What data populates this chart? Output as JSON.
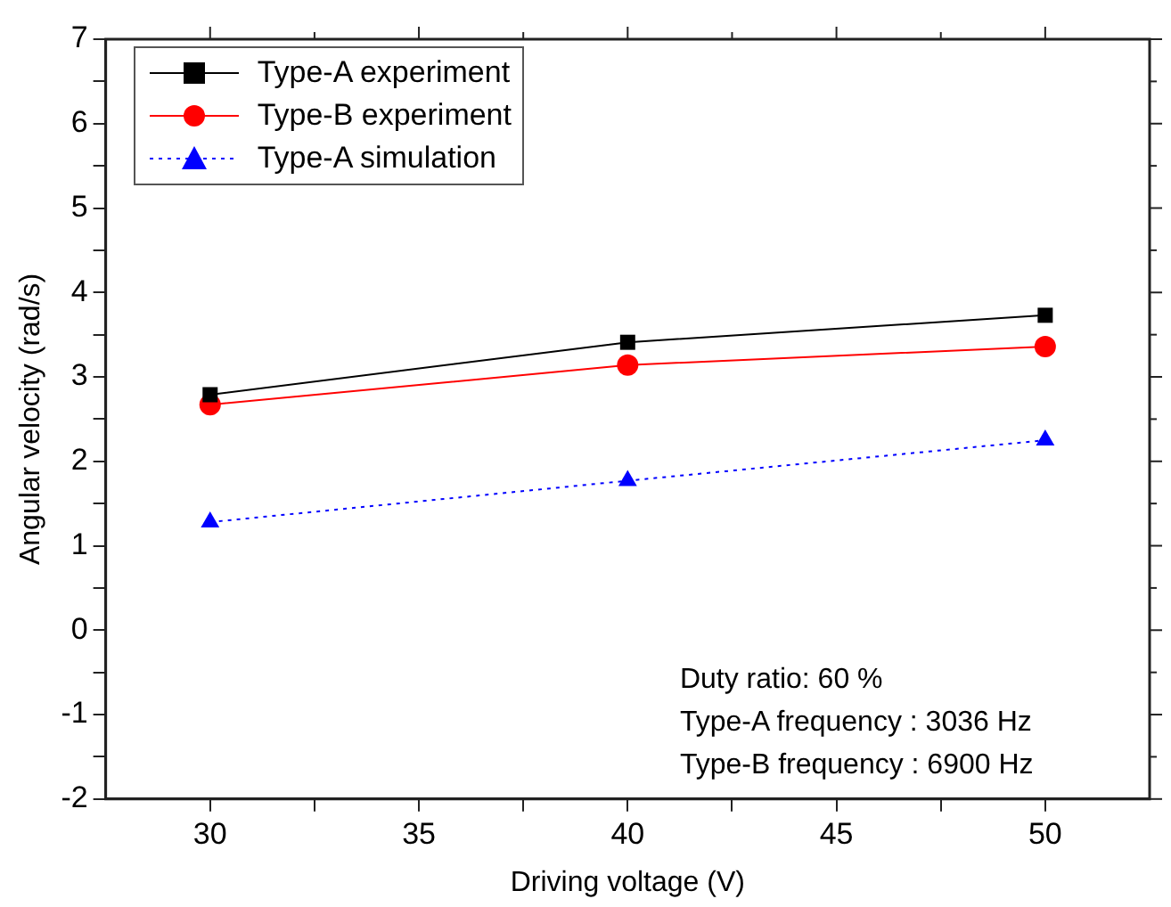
{
  "chart_data": {
    "type": "line",
    "xlabel": "Driving voltage (V)",
    "ylabel": "Angular velocity (rad/s)",
    "x": [
      30,
      40,
      50
    ],
    "series": [
      {
        "name": "Type-A experiment",
        "color": "#000000",
        "marker": "square",
        "line_style": "solid",
        "values": [
          2.79,
          3.41,
          3.73
        ]
      },
      {
        "name": "Type-B experiment",
        "color": "#ff0000",
        "marker": "circle",
        "line_style": "solid",
        "values": [
          2.67,
          3.14,
          3.36
        ]
      },
      {
        "name": "Type-A simulation",
        "color": "#0000ff",
        "marker": "triangle",
        "line_style": "dotted",
        "values": [
          1.28,
          1.77,
          2.25
        ]
      }
    ],
    "xlim": [
      27.5,
      52.5
    ],
    "xticks": [
      30,
      {
        "value": 32.5,
        "label": null
      },
      35,
      {
        "value": 37.5,
        "label": null
      },
      40,
      {
        "value": 42.5,
        "label": null
      },
      45,
      {
        "value": 47.5,
        "label": null
      },
      50
    ],
    "ylim": [
      -2,
      7
    ],
    "yticks": [
      -2,
      {
        "value": -1.5,
        "label": null
      },
      -1,
      {
        "value": -0.5,
        "label": null
      },
      0,
      {
        "value": 0.5,
        "label": null
      },
      1,
      {
        "value": 1.5,
        "label": null
      },
      2,
      {
        "value": 2.5,
        "label": null
      },
      3,
      {
        "value": 3.5,
        "label": null
      },
      4,
      {
        "value": 4.5,
        "label": null
      },
      5,
      {
        "value": 5.5,
        "label": null
      },
      6,
      {
        "value": 6.5,
        "label": null
      },
      7
    ],
    "grid": false,
    "legend": "top left",
    "annotations": [
      "Duty ratio: 60 %",
      "Type-A frequency : 3036 Hz",
      "Type-B frequency : 6900 Hz"
    ]
  }
}
